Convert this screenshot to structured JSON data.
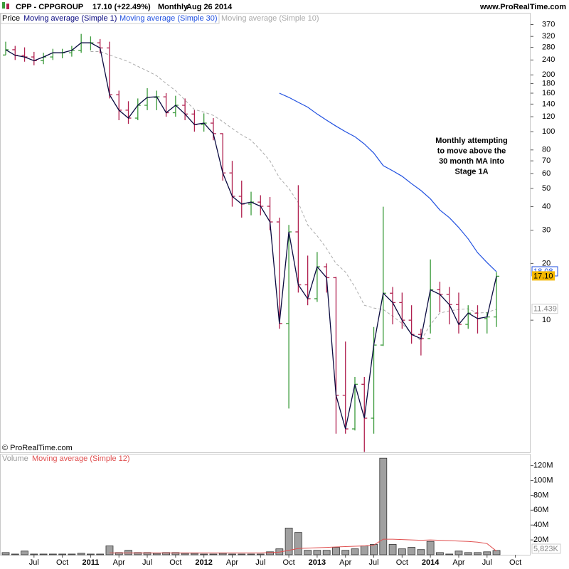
{
  "chart_data": [
    {
      "type": "ohlc",
      "title": "CPP - CPPGROUP",
      "quote": "17.10 (+22.49%)",
      "period": "Monthly",
      "date": "Aug 26 2014",
      "source": "www.ProRealTime.com",
      "copyright": "© ProRealTime.com",
      "annotation": [
        "Monthly attempting",
        "to move above the",
        "30 month MA into",
        "Stage 1A"
      ],
      "name": "Price",
      "up_color": "#3a9a3a",
      "down_color": "#b0204f",
      "close_line_name": "Moving average (Simple 1)",
      "close_line_color": "#0a0a40",
      "last_label": "17.10",
      "log_scale": true,
      "ylim": [
        1.99,
        427
      ],
      "yticks": [
        370,
        320,
        280,
        240,
        200,
        180,
        160,
        140,
        120,
        100,
        80,
        70,
        60,
        50,
        40,
        30,
        20,
        10
      ],
      "open": [
        255,
        272,
        254,
        249,
        238,
        249,
        262,
        262,
        270,
        296,
        296,
        278,
        157,
        130,
        118,
        138,
        152,
        153,
        126,
        138,
        124,
        109,
        111,
        97.6,
        60.4,
        45.4,
        41.3,
        42.3,
        40.2,
        33.2,
        9.6,
        29.4,
        15.4,
        13.0,
        19.2,
        16.8,
        4.0,
        2.65,
        4.57,
        3.02,
        7.38,
        13.9,
        12.4,
        10.0,
        8.4,
        7.98,
        14.5,
        13.7,
        12.1,
        9.5,
        10.9,
        10.2,
        10.4,
        null,
        null
      ],
      "high": [
        300,
        285,
        280,
        265,
        262,
        275,
        275,
        285,
        330,
        320,
        310,
        300,
        165,
        145,
        150,
        170,
        165,
        160,
        155,
        150,
        130,
        125,
        118,
        98,
        70,
        55,
        48,
        46,
        45,
        35,
        32,
        52,
        22,
        23,
        20,
        17,
        7.7,
        5,
        5,
        9.2,
        40,
        15,
        14,
        12,
        9,
        21,
        16,
        15,
        14,
        12,
        12,
        11,
        18,
        null,
        null
      ],
      "low": [
        255,
        240,
        235,
        225,
        228,
        240,
        245,
        250,
        262,
        270,
        260,
        150,
        115,
        110,
        115,
        130,
        130,
        120,
        120,
        115,
        100,
        100,
        90,
        55,
        40,
        35,
        36,
        36,
        30,
        9,
        3.4,
        14,
        12,
        12.5,
        14,
        2.5,
        2.5,
        2.6,
        2.0,
        2.5,
        7.3,
        9.5,
        9,
        7.5,
        6.5,
        8.5,
        11,
        9.5,
        8.5,
        9,
        8.5,
        8.5,
        9.2,
        null,
        null
      ],
      "close": [
        272,
        254,
        249,
        238,
        249,
        262,
        262,
        270,
        296,
        296,
        278,
        157,
        130,
        118,
        138,
        152,
        153,
        126,
        138,
        124,
        109,
        111,
        97.6,
        60.4,
        45.4,
        41.3,
        42.3,
        40.2,
        33.2,
        9.6,
        29.4,
        15.4,
        13.0,
        19.2,
        16.8,
        4.0,
        2.65,
        4.57,
        3.02,
        7.38,
        13.9,
        12.4,
        10.0,
        8.4,
        7.98,
        14.5,
        13.7,
        12.1,
        9.5,
        10.9,
        10.2,
        10.4,
        17.1,
        null,
        null
      ],
      "series": [
        {
          "name": "Moving average (Simple 30)",
          "color": "#2050e0",
          "dashed": false,
          "last_label": "18.08",
          "values": [
            null,
            null,
            null,
            null,
            null,
            null,
            null,
            null,
            null,
            null,
            null,
            null,
            null,
            null,
            null,
            null,
            null,
            null,
            null,
            null,
            null,
            null,
            null,
            null,
            null,
            null,
            null,
            null,
            null,
            160,
            152,
            143,
            135,
            124,
            115,
            107,
            100,
            94,
            86,
            77,
            66,
            62,
            58,
            53,
            48.7,
            44,
            38.4,
            35,
            31,
            27,
            22.8,
            20.2,
            18.08,
            null,
            null
          ]
        },
        {
          "name": "Moving average (Simple 10)",
          "color": "#aaaaaa",
          "dashed": true,
          "last_label": "11.439",
          "values": [
            null,
            null,
            null,
            null,
            null,
            null,
            null,
            null,
            null,
            266,
            266,
            255,
            245,
            235,
            222,
            210,
            198,
            180,
            165,
            147,
            131,
            127,
            122,
            113,
            104,
            96,
            90,
            80,
            70,
            57,
            50,
            42,
            32,
            28,
            24,
            20,
            18,
            15,
            12,
            11.6,
            11.4,
            10.5,
            9.6,
            8.5,
            7.8,
            9.5,
            10.9,
            11.2,
            11.4,
            11.5,
            10.9,
            11.0,
            11.439,
            null,
            null
          ]
        }
      ]
    },
    {
      "type": "bar",
      "name": "Volume",
      "color": "#a0a0a0",
      "last_label": "5,823K",
      "categories": [
        null,
        null,
        null,
        "Jul",
        null,
        null,
        "Oct",
        null,
        null,
        "2011",
        null,
        null,
        "Apr",
        null,
        null,
        "Jul",
        null,
        null,
        "Oct",
        null,
        null,
        "2012",
        null,
        null,
        "Apr",
        null,
        null,
        "Jul",
        null,
        null,
        "Oct",
        null,
        null,
        "2013",
        null,
        null,
        "Apr",
        null,
        null,
        "Jul",
        null,
        null,
        "Oct",
        null,
        null,
        "2014",
        null,
        null,
        "Apr",
        null,
        null,
        "Jul",
        null,
        null,
        "Oct"
      ],
      "ylim": [
        0,
        134
      ],
      "yticks": [
        {
          "value": 20,
          "label": "20M"
        },
        {
          "value": 40,
          "label": "40M"
        },
        {
          "value": 60,
          "label": "60M"
        },
        {
          "value": 80,
          "label": "80M"
        },
        {
          "value": 100,
          "label": "100M"
        },
        {
          "value": 120,
          "label": "120M"
        }
      ],
      "values": [
        3,
        1,
        5,
        1,
        1,
        1,
        1,
        1,
        2,
        1,
        1,
        12,
        3,
        6,
        3,
        3,
        2,
        3,
        3,
        2,
        2,
        1,
        1,
        2,
        1,
        1,
        1,
        1,
        4,
        8,
        36,
        30,
        6,
        6,
        6,
        10,
        6,
        8,
        12,
        14,
        130,
        14,
        8,
        10,
        7,
        18,
        3,
        1,
        5,
        3,
        3,
        4,
        5.823,
        null,
        null
      ],
      "series": [
        {
          "name": "Moving average (Simple 12)",
          "color": "#e05050",
          "values": [
            null,
            null,
            null,
            null,
            null,
            null,
            null,
            null,
            null,
            null,
            null,
            2.5,
            2.5,
            2.5,
            2.5,
            2.5,
            2.5,
            2.5,
            2.5,
            2.5,
            2.5,
            2.5,
            2.5,
            2.5,
            2.5,
            2.5,
            2.5,
            2.5,
            3,
            3.5,
            6,
            8.5,
            9,
            9.5,
            10,
            10.5,
            11,
            11.5,
            12,
            13,
            21,
            21,
            20.5,
            20,
            19.5,
            20,
            19.5,
            19,
            18.5,
            18,
            17,
            15,
            5,
            null,
            null
          ]
        }
      ]
    }
  ]
}
